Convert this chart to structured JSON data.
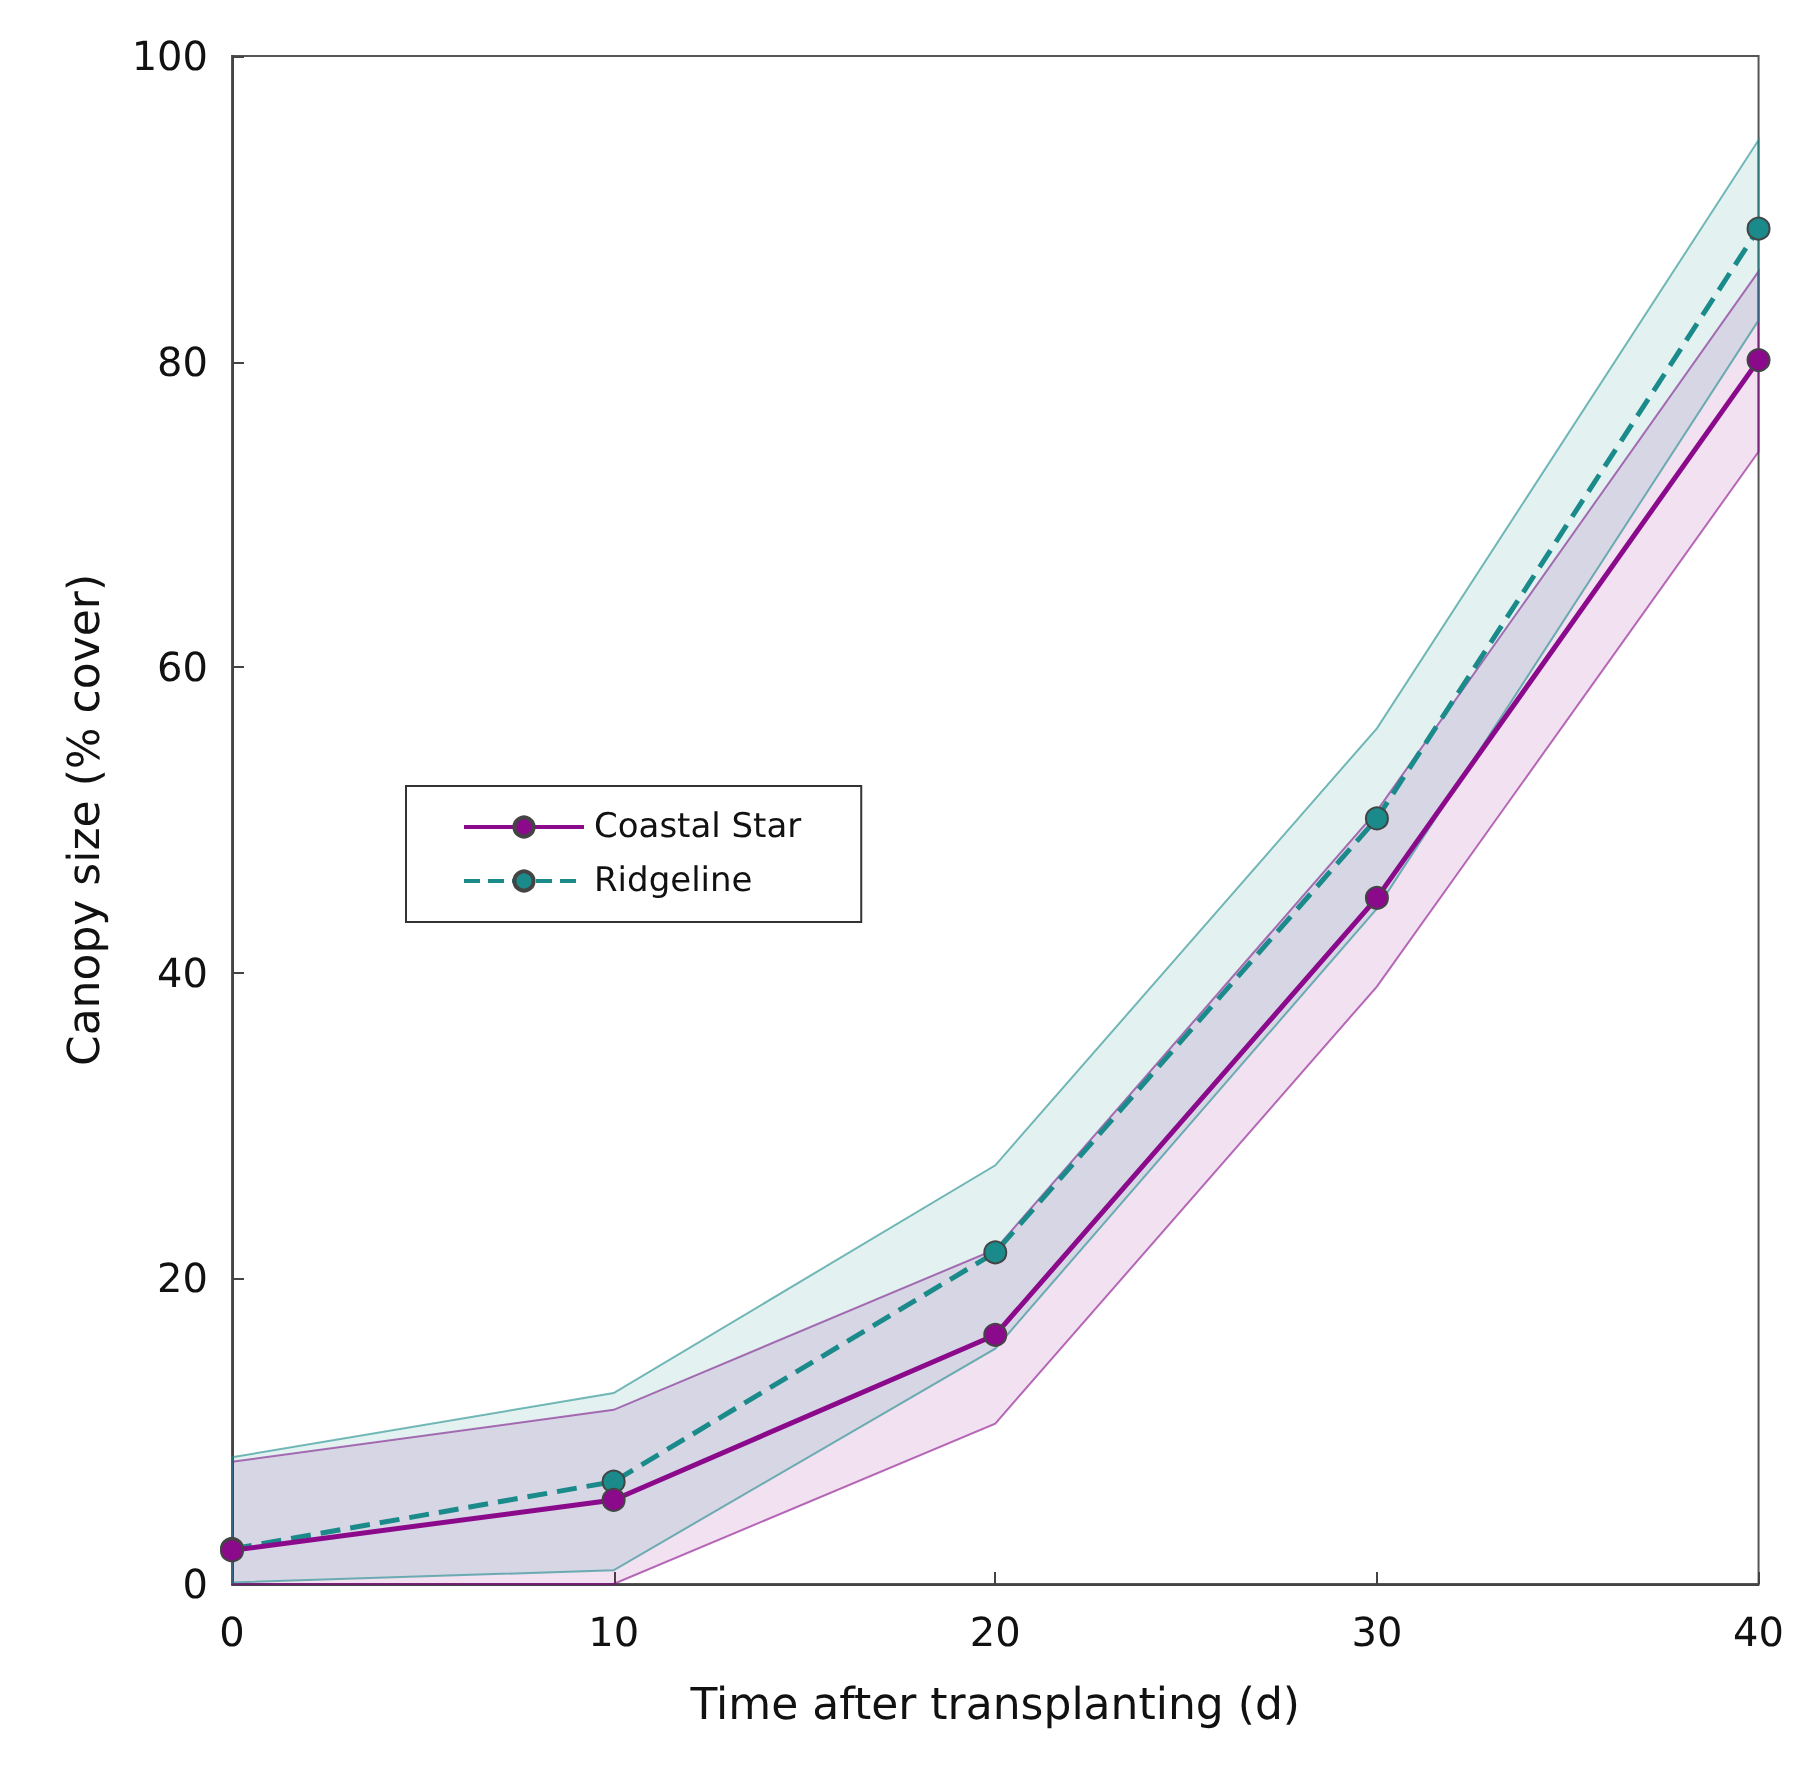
{
  "chart_data": {
    "type": "line",
    "xlabel": "Time after transplanting (d)",
    "ylabel": "Canopy size (% cover)",
    "x": [
      0,
      10,
      20,
      30,
      40
    ],
    "xlim": [
      0,
      40
    ],
    "xticks": [
      0,
      10,
      20,
      30,
      40
    ],
    "ylim": [
      0,
      100
    ],
    "yticks": [
      0,
      20,
      40,
      60,
      80,
      100
    ],
    "grid": false,
    "legend": "left",
    "marker": "circle",
    "series": [
      {
        "name": "Coastal Star",
        "color": "#8b0a8b",
        "line_style": "solid",
        "values": [
          2.2,
          5.5,
          16.3,
          44.9,
          80.1
        ],
        "lower": [
          0,
          0,
          10.5,
          39.1,
          74.1
        ],
        "upper": [
          8.0,
          11.4,
          21.9,
          50.6,
          85.9
        ]
      },
      {
        "name": "Ridgeline",
        "color": "#1a8a8a",
        "line_style": "dashed",
        "values": [
          2.3,
          6.7,
          21.7,
          50.1,
          88.7
        ],
        "lower": [
          0.1,
          0.9,
          15.4,
          44.2,
          82.7
        ],
        "upper": [
          8.3,
          12.5,
          27.4,
          56.0,
          94.5
        ]
      }
    ]
  }
}
